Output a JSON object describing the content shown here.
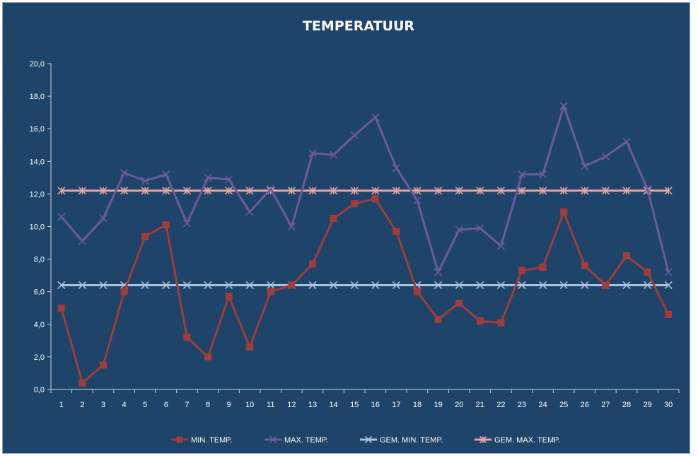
{
  "chart_data": {
    "type": "line",
    "title": "TEMPERATUUR",
    "xlabel": "",
    "ylabel": "",
    "ylim": [
      0,
      20
    ],
    "yticks": [
      "0,0",
      "2,0",
      "4,0",
      "6,0",
      "8,0",
      "10,0",
      "12,0",
      "14,0",
      "16,0",
      "18,0",
      "20,0"
    ],
    "x": [
      1,
      2,
      3,
      4,
      5,
      6,
      7,
      8,
      9,
      10,
      11,
      12,
      13,
      14,
      15,
      16,
      17,
      18,
      19,
      20,
      21,
      22,
      23,
      24,
      25,
      26,
      27,
      28,
      29,
      30
    ],
    "grid": false,
    "legend_position": "bottom",
    "series": [
      {
        "name": "MIN. TEMP.",
        "color": "#a03c3c",
        "marker": "square",
        "values": [
          5.0,
          0.4,
          1.5,
          6.0,
          9.4,
          10.1,
          3.2,
          2.0,
          5.7,
          2.6,
          6.0,
          6.4,
          7.7,
          10.5,
          11.4,
          11.7,
          9.7,
          6.0,
          4.3,
          5.3,
          4.2,
          4.1,
          7.3,
          7.5,
          10.9,
          7.6,
          6.4,
          8.2,
          7.2,
          4.6
        ]
      },
      {
        "name": "MAX. TEMP.",
        "color": "#6c5a98",
        "marker": "x",
        "values": [
          10.6,
          9.1,
          10.5,
          13.3,
          12.8,
          13.2,
          10.2,
          13.0,
          12.9,
          10.9,
          12.3,
          10.0,
          14.5,
          14.4,
          15.6,
          16.7,
          13.6,
          11.6,
          7.2,
          9.8,
          9.9,
          8.8,
          13.2,
          13.2,
          17.4,
          13.7,
          14.3,
          15.2,
          12.3,
          7.2
        ]
      },
      {
        "name": "GEM. MIN. TEMP.",
        "color": "#a9c2df",
        "marker": "x",
        "values": [
          6.4,
          6.4,
          6.4,
          6.4,
          6.4,
          6.4,
          6.4,
          6.4,
          6.4,
          6.4,
          6.4,
          6.4,
          6.4,
          6.4,
          6.4,
          6.4,
          6.4,
          6.4,
          6.4,
          6.4,
          6.4,
          6.4,
          6.4,
          6.4,
          6.4,
          6.4,
          6.4,
          6.4,
          6.4,
          6.4
        ]
      },
      {
        "name": "GEM. MAX. TEMP.",
        "color": "#e3a3a6",
        "marker": "star",
        "values": [
          12.2,
          12.2,
          12.2,
          12.2,
          12.2,
          12.2,
          12.2,
          12.2,
          12.2,
          12.2,
          12.2,
          12.2,
          12.2,
          12.2,
          12.2,
          12.2,
          12.2,
          12.2,
          12.2,
          12.2,
          12.2,
          12.2,
          12.2,
          12.2,
          12.2,
          12.2,
          12.2,
          12.2,
          12.2,
          12.2
        ]
      }
    ]
  }
}
